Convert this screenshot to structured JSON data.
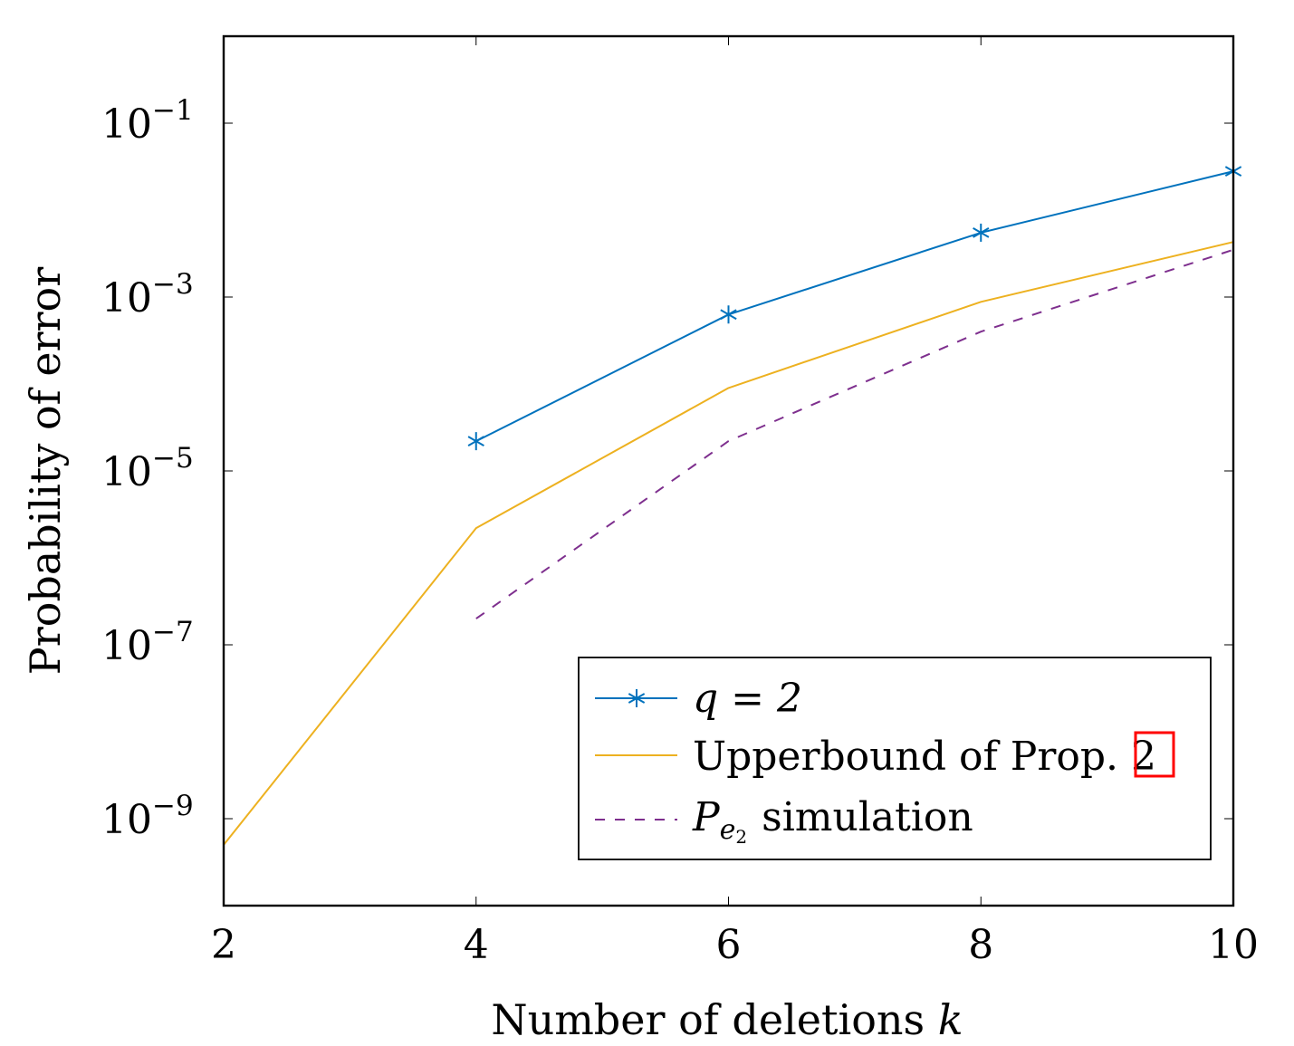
{
  "chart_data": {
    "type": "line",
    "title": "",
    "xlabel": "Number of deletions",
    "xlabel_var": "k",
    "ylabel": "Probability of error",
    "y_scale": "log",
    "xlim": [
      2,
      10
    ],
    "ylim": [
      1e-10,
      1
    ],
    "x_ticks": [
      "2",
      "4",
      "6",
      "8",
      "10"
    ],
    "y_ticks": [
      {
        "base": "10",
        "exp": "−1",
        "value": 0.1
      },
      {
        "base": "10",
        "exp": "−3",
        "value": 0.001
      },
      {
        "base": "10",
        "exp": "−5",
        "value": 1e-05
      },
      {
        "base": "10",
        "exp": "−7",
        "value": 1e-07
      },
      {
        "base": "10",
        "exp": "−9",
        "value": 1e-09
      }
    ],
    "grid": false,
    "legend_position": "bottom-right",
    "series": [
      {
        "name": "q = 2",
        "color": "#0072bd",
        "style": "solid",
        "marker": "asterisk",
        "x": [
          4,
          6,
          8,
          10
        ],
        "y": [
          2.2e-05,
          0.00063,
          0.0055,
          0.028
        ]
      },
      {
        "name": "Upperbound of Prop. 2",
        "ref": "2",
        "color": "#edb120",
        "style": "solid",
        "marker": "none",
        "x": [
          2,
          4,
          6,
          8,
          10
        ],
        "y": [
          5e-10,
          2.2e-06,
          9e-05,
          0.00088,
          0.0043
        ]
      },
      {
        "name": "P_{e_2} simulation",
        "label_main": "P",
        "label_sub": "e",
        "label_subsub": "2",
        "label_rest": "simulation",
        "color": "#7e2f8e",
        "style": "dashed",
        "marker": "none",
        "x": [
          4,
          6,
          8,
          10
        ],
        "y": [
          2e-07,
          2.2e-05,
          0.0004,
          0.0035
        ]
      }
    ]
  }
}
